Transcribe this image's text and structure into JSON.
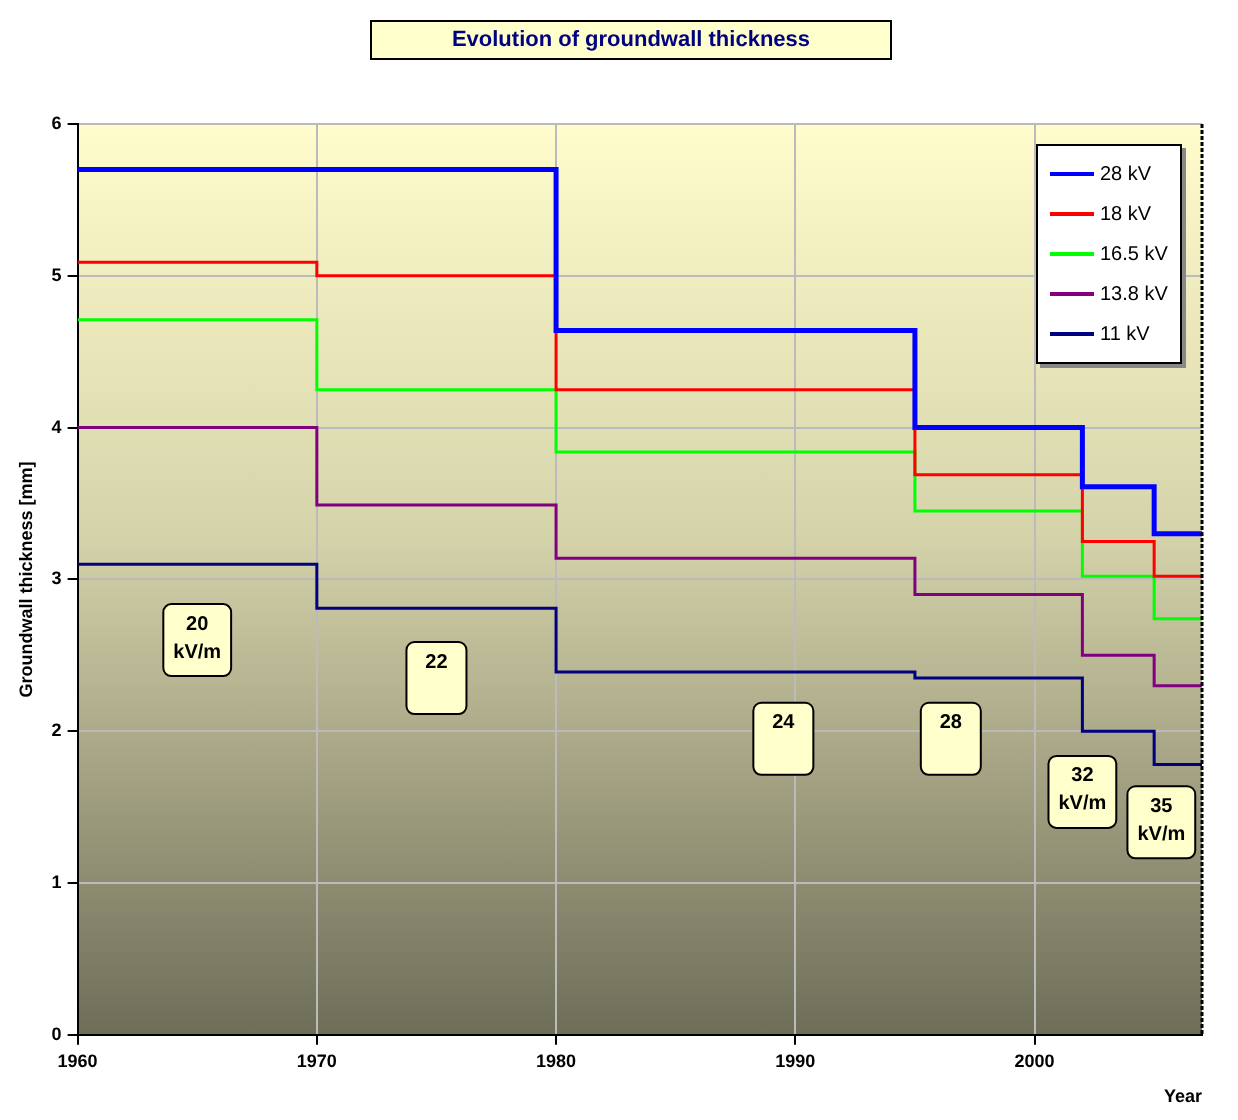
{
  "chart_data": {
    "type": "step",
    "title": "Evolution of groundwall thickness",
    "xlabel": "Year",
    "ylabel": "Groundwall thickness [mm]",
    "x": [
      1960,
      1970,
      1980,
      1995,
      2002,
      2005,
      2007
    ],
    "series": [
      {
        "name": "28 kV",
        "color": "#0000ff",
        "values": [
          5.7,
          5.7,
          4.64,
          4.0,
          3.61,
          3.3,
          3.3
        ]
      },
      {
        "name": "18 kV",
        "color": "#ff0000",
        "values": [
          5.09,
          5.0,
          4.25,
          3.69,
          3.25,
          3.02,
          3.02
        ]
      },
      {
        "name": "16.5 kV",
        "color": "#00ff00",
        "values": [
          4.71,
          4.25,
          3.84,
          3.45,
          3.02,
          2.74,
          2.74
        ]
      },
      {
        "name": "13.8 kV",
        "color": "#800080",
        "values": [
          4.0,
          3.49,
          3.14,
          2.9,
          2.5,
          2.3,
          2.3
        ]
      },
      {
        "name": "11 kV",
        "color": "#000080",
        "values": [
          3.1,
          2.81,
          2.39,
          2.35,
          2.0,
          1.78,
          1.78
        ]
      }
    ],
    "xlim": [
      1960,
      2007
    ],
    "xticks": [
      1960,
      1970,
      1980,
      1990,
      2000
    ],
    "ylim": [
      0,
      6
    ],
    "yticks": [
      0,
      1,
      2,
      3,
      4,
      5,
      6
    ],
    "grid": true,
    "legend": "top right",
    "annotations": [
      {
        "text": "20\nkV/m",
        "x": 1965,
        "y": 2.6
      },
      {
        "text": "22",
        "x": 1975,
        "y": 2.35
      },
      {
        "text": "24",
        "x": 1989.5,
        "y": 1.95
      },
      {
        "text": "28",
        "x": 1996.5,
        "y": 1.95
      },
      {
        "text": "32\nkV/m",
        "x": 2002,
        "y": 1.6
      },
      {
        "text": "35\nkV/m",
        "x": 2005.3,
        "y": 1.4
      }
    ]
  }
}
